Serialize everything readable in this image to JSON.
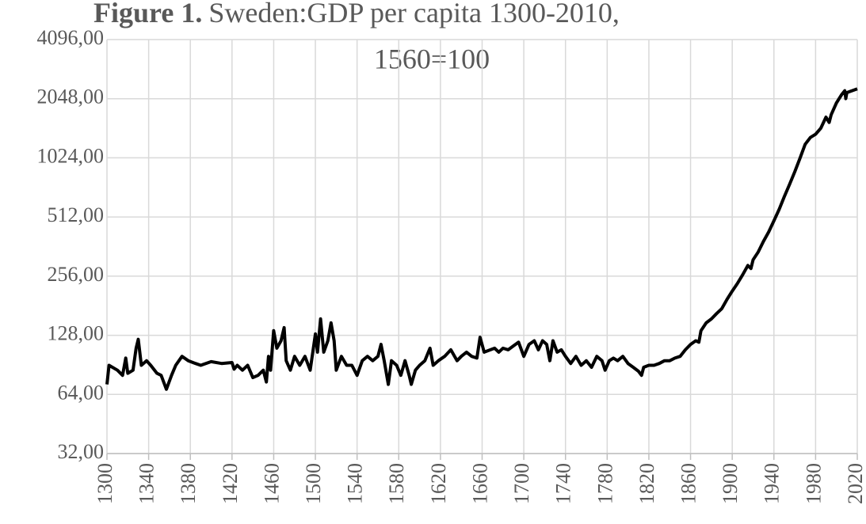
{
  "chart_data": {
    "type": "line",
    "title_prefix": "Figure 1.",
    "title": [
      "Sweden:GDP per capita 1300-2010,",
      "1560=100"
    ],
    "log_scale": true,
    "log_base": 2,
    "grid": true,
    "xlim": [
      1300,
      2020
    ],
    "xticks": [
      1300,
      1340,
      1380,
      1420,
      1460,
      1500,
      1540,
      1580,
      1620,
      1660,
      1700,
      1740,
      1780,
      1820,
      1860,
      1900,
      1940,
      1980,
      2020
    ],
    "ylim": [
      32,
      4096
    ],
    "yticks": [
      {
        "value": 32,
        "label": "32,00"
      },
      {
        "value": 64,
        "label": "64,00"
      },
      {
        "value": 128,
        "label": "128,00"
      },
      {
        "value": 256,
        "label": "256,00"
      },
      {
        "value": 512,
        "label": "512,00"
      },
      {
        "value": 1024,
        "label": "1024,00"
      },
      {
        "value": 2048,
        "label": "2048,00"
      },
      {
        "value": 4096,
        "label": "4096,00"
      }
    ],
    "x": [
      1300,
      1302,
      1310,
      1315,
      1318,
      1320,
      1325,
      1328,
      1330,
      1333,
      1338,
      1342,
      1348,
      1352,
      1357,
      1362,
      1366,
      1372,
      1378,
      1385,
      1390,
      1400,
      1410,
      1420,
      1422,
      1425,
      1430,
      1435,
      1440,
      1445,
      1450,
      1453,
      1455,
      1457,
      1460,
      1463,
      1467,
      1470,
      1472,
      1476,
      1480,
      1485,
      1490,
      1495,
      1500,
      1502,
      1505,
      1508,
      1512,
      1515,
      1518,
      1520,
      1525,
      1530,
      1535,
      1540,
      1545,
      1550,
      1555,
      1560,
      1563,
      1566,
      1570,
      1573,
      1578,
      1582,
      1586,
      1590,
      1592,
      1596,
      1600,
      1605,
      1610,
      1613,
      1618,
      1624,
      1630,
      1636,
      1640,
      1645,
      1650,
      1655,
      1658,
      1662,
      1668,
      1672,
      1676,
      1680,
      1685,
      1690,
      1695,
      1700,
      1705,
      1710,
      1714,
      1718,
      1722,
      1725,
      1728,
      1732,
      1736,
      1740,
      1745,
      1750,
      1755,
      1760,
      1765,
      1770,
      1775,
      1778,
      1782,
      1786,
      1790,
      1795,
      1800,
      1805,
      1810,
      1813,
      1815,
      1820,
      1825,
      1830,
      1835,
      1840,
      1845,
      1850,
      1855,
      1860,
      1865,
      1868,
      1870,
      1875,
      1880,
      1885,
      1890,
      1895,
      1900,
      1905,
      1910,
      1915,
      1918,
      1920,
      1925,
      1930,
      1935,
      1940,
      1945,
      1950,
      1955,
      1960,
      1965,
      1970,
      1975,
      1980,
      1985,
      1990,
      1993,
      1995,
      2000,
      2005,
      2008,
      2009,
      2010,
      2015,
      2020
    ],
    "series": [
      {
        "color": "#000000",
        "values": [
          72,
          90,
          85,
          80,
          98,
          82,
          85,
          110,
          122,
          90,
          95,
          90,
          82,
          80,
          68,
          80,
          90,
          100,
          95,
          92,
          90,
          94,
          92,
          93,
          86,
          90,
          85,
          90,
          78,
          80,
          85,
          74,
          100,
          85,
          135,
          110,
          120,
          140,
          95,
          85,
          100,
          90,
          100,
          85,
          130,
          105,
          155,
          105,
          120,
          148,
          120,
          85,
          100,
          90,
          90,
          80,
          95,
          100,
          95,
          100,
          115,
          95,
          72,
          95,
          90,
          80,
          95,
          80,
          72,
          85,
          90,
          95,
          110,
          90,
          95,
          100,
          108,
          95,
          100,
          105,
          100,
          98,
          125,
          105,
          108,
          110,
          105,
          110,
          108,
          113,
          118,
          100,
          115,
          120,
          108,
          120,
          115,
          95,
          120,
          105,
          108,
          100,
          92,
          100,
          90,
          95,
          88,
          100,
          95,
          85,
          95,
          98,
          95,
          100,
          92,
          88,
          84,
          80,
          88,
          90,
          90,
          92,
          95,
          95,
          98,
          100,
          108,
          115,
          120,
          118,
          135,
          148,
          155,
          165,
          175,
          195,
          215,
          235,
          260,
          290,
          280,
          310,
          340,
          385,
          430,
          490,
          560,
          650,
          750,
          870,
          1020,
          1200,
          1300,
          1350,
          1450,
          1650,
          1550,
          1700,
          1950,
          2150,
          2250,
          2050,
          2200,
          2250,
          2300
        ]
      }
    ]
  }
}
